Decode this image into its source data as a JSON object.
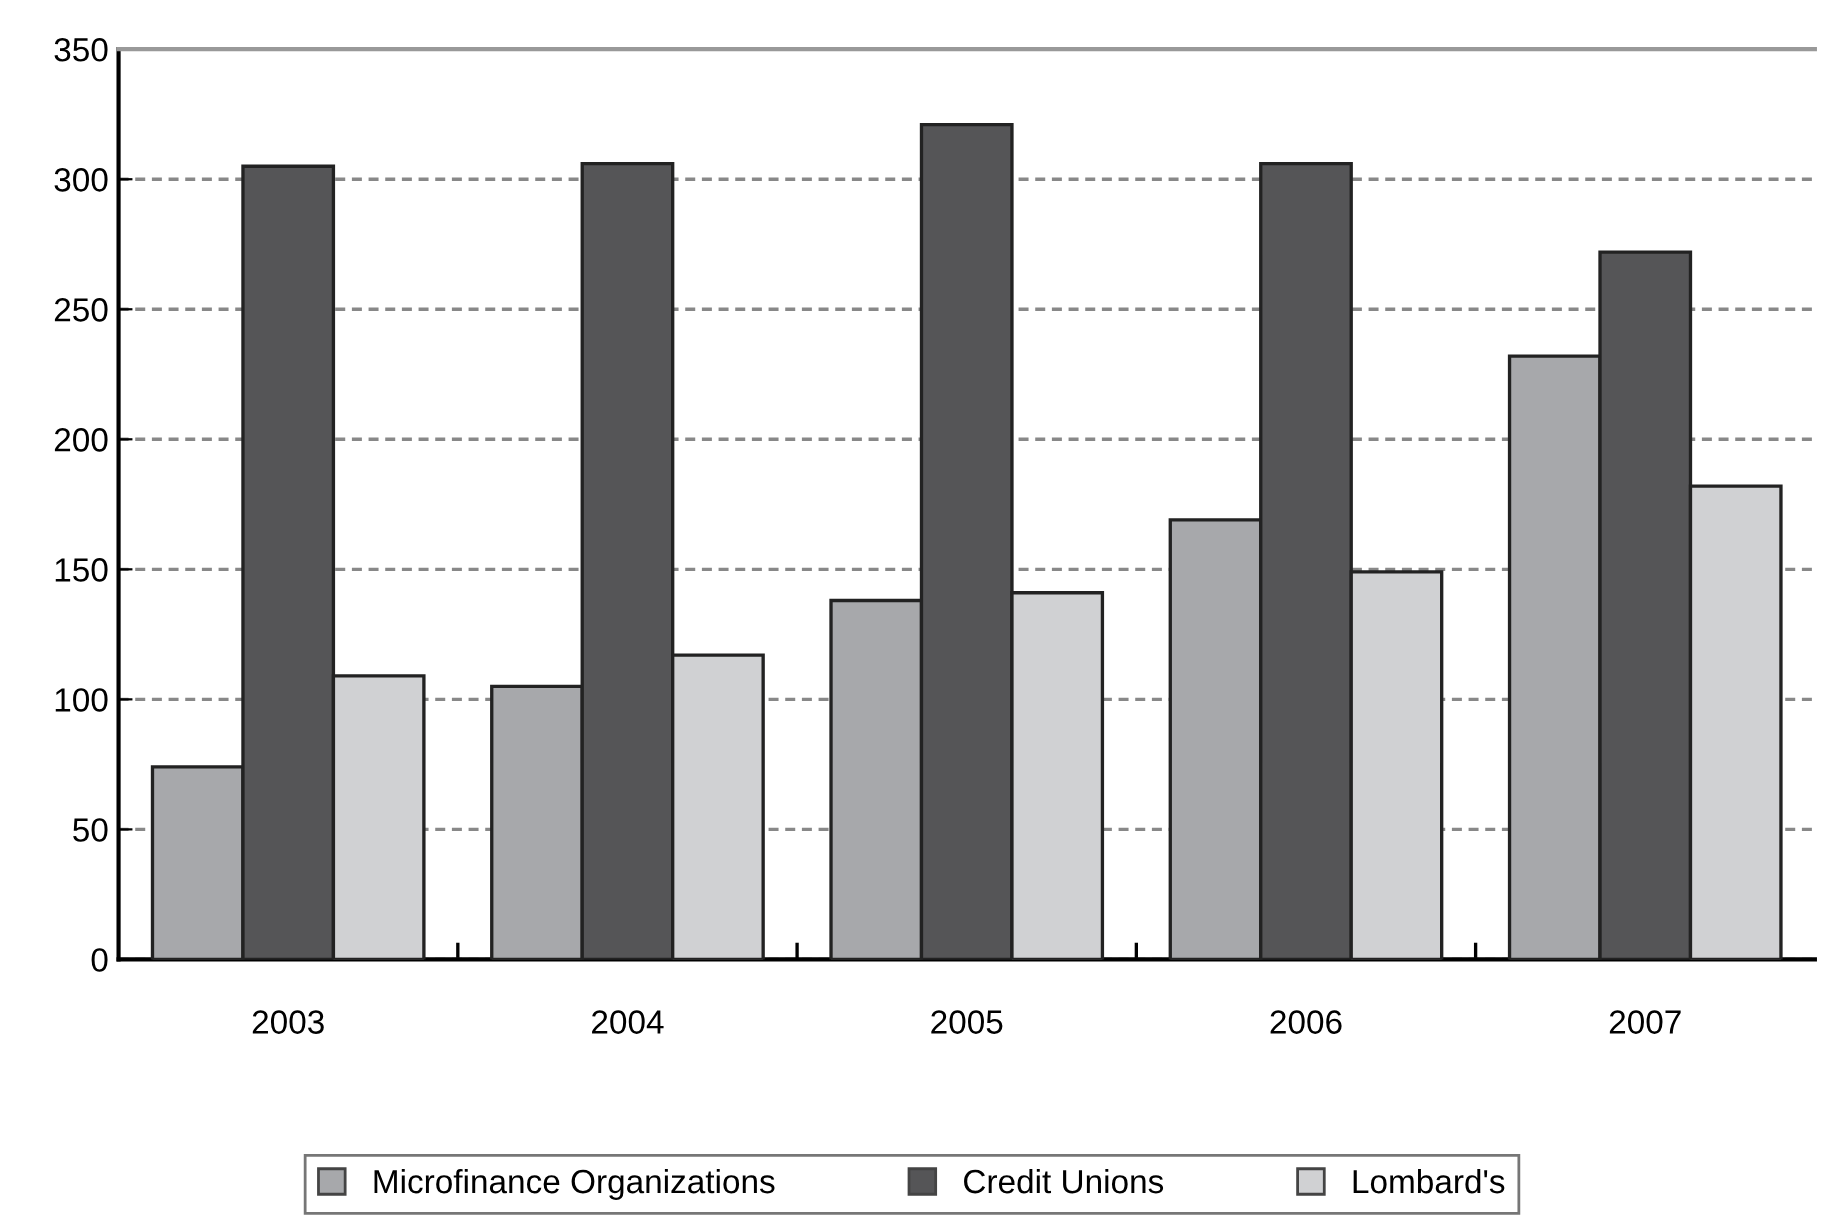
{
  "chart_data": {
    "type": "bar",
    "categories": [
      "2003",
      "2004",
      "2005",
      "2006",
      "2007"
    ],
    "series": [
      {
        "name": "Microfinance Organizations",
        "color": "#a7a8ab",
        "values": [
          74,
          105,
          138,
          169,
          232
        ]
      },
      {
        "name": "Credit Unions",
        "color": "#555557",
        "values": [
          305,
          306,
          321,
          306,
          272
        ]
      },
      {
        "name": "Lombard's",
        "color": "#d0d1d3",
        "values": [
          109,
          117,
          141,
          149,
          182
        ]
      }
    ],
    "ylim": [
      0,
      350
    ],
    "yticks": [
      0,
      50,
      100,
      150,
      200,
      250,
      300,
      350
    ],
    "grid": "y",
    "legend": "bottom"
  }
}
